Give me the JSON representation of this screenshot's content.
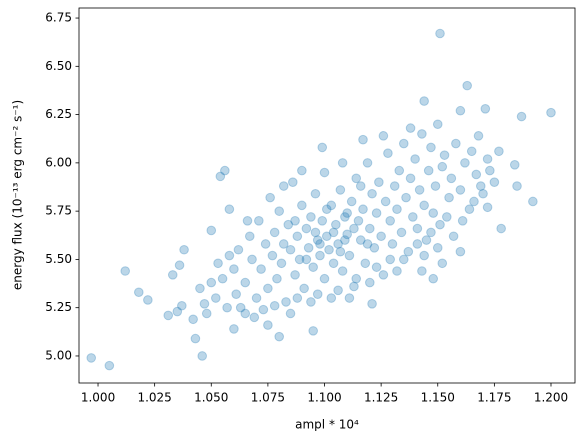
{
  "chart_data": {
    "type": "scatter",
    "xlabel": "ampl * 10⁴",
    "ylabel": "energy flux (10⁻¹³ erg cm⁻² s⁻¹)",
    "color": "#1f77b4",
    "alpha": 0.3,
    "xlim": [
      0.9916,
      1.2106
    ],
    "ylim": [
      4.86,
      6.802
    ],
    "xticks": [
      {
        "value": 1.0,
        "label": "1.000"
      },
      {
        "value": 1.025,
        "label": "1.025"
      },
      {
        "value": 1.05,
        "label": "1.050"
      },
      {
        "value": 1.075,
        "label": "1.075"
      },
      {
        "value": 1.1,
        "label": "1.100"
      },
      {
        "value": 1.125,
        "label": "1.125"
      },
      {
        "value": 1.15,
        "label": "1.150"
      },
      {
        "value": 1.175,
        "label": "1.175"
      },
      {
        "value": 1.2,
        "label": "1.200"
      }
    ],
    "yticks": [
      {
        "value": 5.0,
        "label": "5.00"
      },
      5.25,
      {
        "value": 5.5,
        "label": "5.50"
      },
      5.75,
      {
        "value": 6.0,
        "label": "6.00"
      },
      6.25,
      {
        "value": 6.5,
        "label": "6.50"
      },
      6.75
    ],
    "grid": false,
    "x": [
      0.997,
      1.005,
      1.012,
      1.018,
      1.022,
      1.031,
      1.033,
      1.036,
      1.038,
      1.037,
      1.035,
      1.042,
      1.043,
      1.046,
      1.047,
      1.05,
      1.05,
      1.054,
      1.056,
      1.058,
      1.06,
      1.065,
      1.151,
      1.163,
      1.144,
      1.16,
      1.171,
      1.187,
      1.2,
      1.192,
      1.178,
      1.185,
      1.184,
      1.172,
      1.16,
      1.148,
      1.143,
      1.121,
      1.095,
      1.075,
      1.08,
      1.152,
      1.06,
      1.062,
      1.065,
      1.067,
      1.068,
      1.07,
      1.071,
      1.072,
      1.074,
      1.075,
      1.076,
      1.077,
      1.078,
      1.079,
      1.08,
      1.081,
      1.082,
      1.083,
      1.084,
      1.085,
      1.086,
      1.087,
      1.088,
      1.089,
      1.09,
      1.091,
      1.092,
      1.093,
      1.094,
      1.095,
      1.096,
      1.097,
      1.098,
      1.099,
      1.1,
      1.1,
      1.101,
      1.102,
      1.103,
      1.104,
      1.105,
      1.106,
      1.107,
      1.108,
      1.109,
      1.11,
      1.111,
      1.112,
      1.113,
      1.114,
      1.115,
      1.116,
      1.117,
      1.118,
      1.119,
      1.12,
      1.121,
      1.122,
      1.123,
      1.124,
      1.125,
      1.126,
      1.127,
      1.128,
      1.129,
      1.13,
      1.131,
      1.132,
      1.133,
      1.134,
      1.135,
      1.136,
      1.137,
      1.138,
      1.139,
      1.14,
      1.141,
      1.142,
      1.143,
      1.144,
      1.145,
      1.146,
      1.147,
      1.148,
      1.149,
      1.15,
      1.151,
      1.152,
      1.153,
      1.155,
      1.156,
      1.158,
      1.16,
      1.162,
      1.164,
      1.165,
      1.167,
      1.168,
      1.17,
      1.172,
      1.175,
      1.177,
      1.045,
      1.048,
      1.052,
      1.053,
      1.055,
      1.057,
      1.058,
      1.061,
      1.063,
      1.066,
      1.069,
      1.073,
      1.078,
      1.082,
      1.085,
      1.088,
      1.09,
      1.094,
      1.097,
      1.099,
      1.103,
      1.106,
      1.108,
      1.111,
      1.114,
      1.117,
      1.12,
      1.123,
      1.126,
      1.129,
      1.132,
      1.135,
      1.138,
      1.141,
      1.144,
      1.147,
      1.15,
      1.154,
      1.157,
      1.161,
      1.166,
      1.169,
      1.173,
      1.104,
      1.107,
      1.11,
      1.101,
      1.096,
      1.092,
      1.087,
      1.113,
      1.116,
      1.119,
      1.109,
      1.098
    ],
    "values": [
      4.99,
      4.95,
      5.44,
      5.33,
      5.29,
      5.21,
      5.42,
      5.47,
      5.55,
      5.26,
      5.23,
      5.19,
      5.09,
      5.0,
      5.27,
      5.38,
      5.65,
      5.93,
      5.96,
      5.76,
      5.14,
      5.22,
      6.67,
      6.4,
      6.32,
      6.27,
      6.28,
      6.24,
      6.26,
      5.8,
      5.66,
      5.88,
      5.99,
      5.77,
      5.54,
      5.4,
      5.44,
      5.27,
      5.13,
      5.16,
      5.1,
      5.48,
      5.45,
      5.55,
      5.38,
      5.62,
      5.5,
      5.3,
      5.7,
      5.45,
      5.58,
      5.35,
      5.82,
      5.52,
      5.64,
      5.4,
      5.75,
      5.48,
      5.58,
      5.28,
      5.68,
      5.55,
      5.9,
      5.42,
      5.62,
      5.5,
      5.78,
      5.35,
      5.66,
      5.56,
      5.72,
      5.46,
      5.84,
      5.6,
      5.52,
      5.7,
      5.4,
      5.95,
      5.62,
      5.55,
      5.78,
      5.48,
      5.68,
      5.58,
      5.86,
      5.44,
      5.72,
      5.63,
      5.52,
      5.8,
      5.36,
      5.92,
      5.7,
      5.6,
      5.76,
      5.48,
      6.0,
      5.66,
      5.84,
      5.56,
      5.74,
      5.9,
      5.62,
      5.42,
      5.8,
      6.05,
      5.7,
      5.58,
      5.88,
      5.76,
      5.96,
      5.64,
      6.1,
      5.82,
      5.54,
      5.92,
      5.72,
      6.02,
      5.66,
      5.86,
      6.15,
      5.78,
      5.6,
      5.96,
      6.08,
      5.74,
      5.88,
      6.2,
      5.68,
      5.98,
      6.04,
      5.82,
      5.92,
      6.1,
      5.86,
      6.0,
      5.76,
      6.06,
      5.94,
      6.14,
      5.84,
      6.02,
      5.9,
      6.06,
      5.35,
      5.22,
      5.3,
      5.48,
      5.4,
      5.25,
      5.52,
      5.32,
      5.25,
      5.7,
      5.2,
      5.24,
      5.26,
      5.88,
      5.22,
      5.3,
      5.96,
      5.28,
      5.32,
      6.08,
      5.3,
      5.34,
      6.0,
      5.3,
      5.4,
      6.12,
      5.38,
      5.46,
      6.14,
      5.5,
      5.44,
      5.5,
      6.18,
      5.58,
      5.52,
      5.64,
      5.56,
      5.72,
      5.62,
      5.7,
      5.8,
      5.88,
      5.96,
      5.64,
      5.54,
      5.74,
      5.76,
      5.64,
      5.5,
      5.7,
      5.66,
      5.88,
      5.58,
      5.6,
      5.58
    ]
  }
}
